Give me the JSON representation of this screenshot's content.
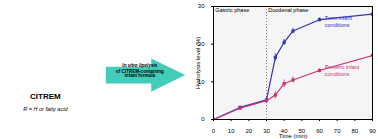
{
  "chart_data": {
    "type": "line",
    "xlabel": "Time (min)",
    "ylabel": "Hydrolysis level (%)",
    "xlim": [
      0,
      90
    ],
    "ylim": [
      0,
      30
    ],
    "xticks": [
      0,
      10,
      20,
      30,
      40,
      50,
      60,
      70,
      80,
      90
    ],
    "yticks": [
      0,
      10,
      20,
      30
    ],
    "grid": false,
    "marker": "square",
    "vline": 30,
    "series": [
      {
        "color": "#3333bb",
        "x": [
          0,
          15,
          30,
          35,
          40,
          45,
          60,
          90
        ],
        "values": [
          0.0,
          3.2,
          5.2,
          16.5,
          20.5,
          23.5,
          26.5,
          28.0
        ],
        "errors": [
          0.1,
          0.4,
          0.6,
          1.0,
          0.8,
          0.7,
          0.5,
          0.4
        ]
      },
      {
        "color": "#cc3377",
        "x": [
          0,
          15,
          30,
          35,
          40,
          45,
          60,
          90
        ],
        "values": [
          0.0,
          3.0,
          5.0,
          6.5,
          9.5,
          10.5,
          13.0,
          17.0
        ],
        "errors": [
          0.1,
          0.3,
          0.5,
          1.0,
          1.0,
          0.8,
          0.5,
          0.6
        ]
      }
    ],
    "phase_labels": [
      {
        "text": "Gastric phase",
        "x": 1,
        "y": 29.5
      },
      {
        "text": "Duodenal phase",
        "x": 31,
        "y": 29.5
      }
    ],
    "annotations": [
      {
        "text": "Term infant",
        "x": 63,
        "y": 26.5,
        "color": "#3333bb"
      },
      {
        "text": "conditions",
        "x": 63,
        "y": 24.5,
        "color": "#3333bb"
      },
      {
        "text": "Preterm infant",
        "x": 63,
        "y": 13.5,
        "color": "#cc3377"
      },
      {
        "text": "conditions",
        "x": 63,
        "y": 11.5,
        "color": "#cc3377"
      }
    ],
    "side_label": "CITREM",
    "side_sublabel": "R = H or fatty acid",
    "arrow_text": [
      "In vitro lipolysis",
      "of CITREM-containing",
      "infant formula"
    ],
    "arrow_color": "#44ccbb"
  }
}
